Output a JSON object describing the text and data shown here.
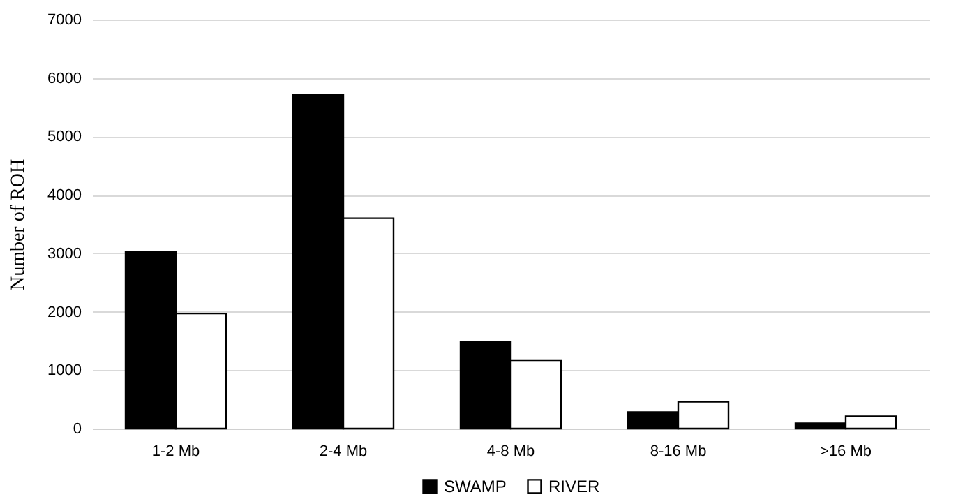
{
  "chart_data": {
    "type": "bar",
    "ylabel": "Number of ROH",
    "categories": [
      "1-2 Mb",
      "2-4 Mb",
      "4-8 Mb",
      "8-16 Mb",
      ">16 Mb"
    ],
    "series": [
      {
        "name": "SWAMP",
        "color": "#000000",
        "values": [
          3030,
          5720,
          1490,
          280,
          90
        ]
      },
      {
        "name": "RIVER",
        "color": "#ffffff",
        "values": [
          1970,
          3600,
          1170,
          460,
          210
        ]
      }
    ],
    "ylim": [
      0,
      7000
    ],
    "yticks": [
      0,
      1000,
      2000,
      3000,
      4000,
      5000,
      6000,
      7000
    ],
    "grid": "y",
    "legend": "bottom"
  }
}
